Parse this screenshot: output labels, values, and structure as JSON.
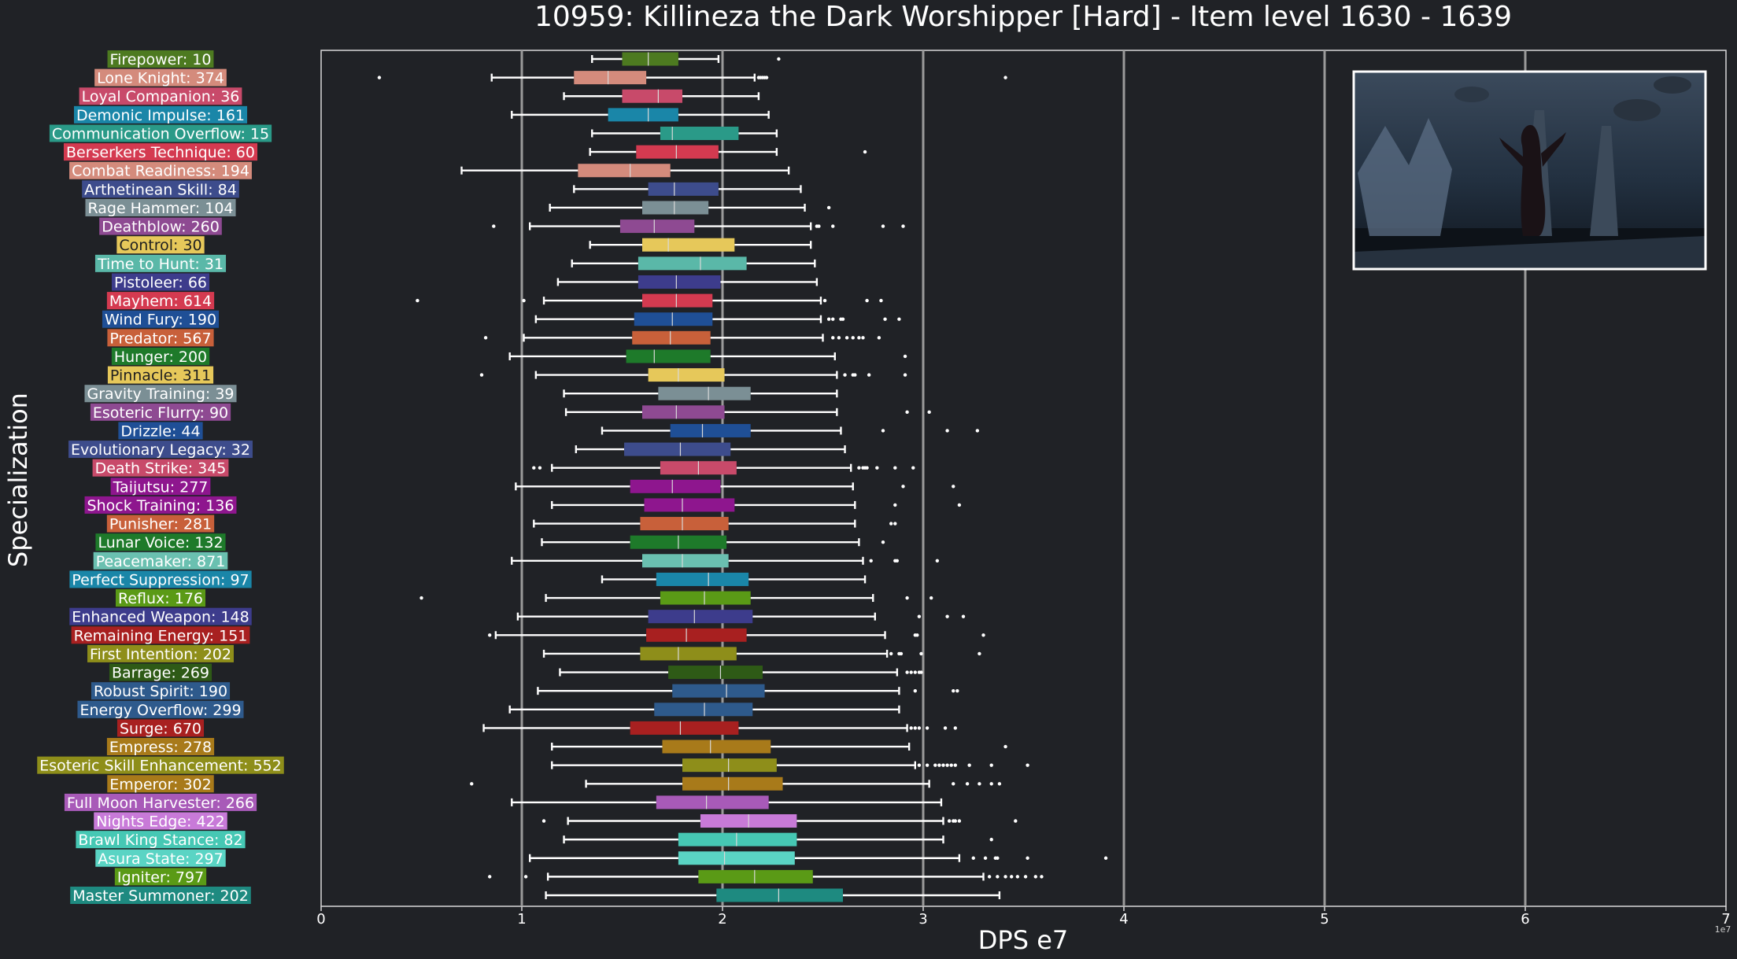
{
  "chart_data": {
    "type": "boxplot",
    "orientation": "horizontal",
    "title": "10959: Killineza the Dark Worshipper [Hard] - Item level 1630 - 1639",
    "xlabel": "DPS e7",
    "ylabel": "Specialization",
    "x_offset_text": "1e7",
    "xlim": [
      0,
      7
    ],
    "x_ticks": [
      0,
      1,
      2,
      3,
      4,
      5,
      6,
      7
    ],
    "grid_lines_x": [
      1,
      2,
      3,
      4,
      5,
      6
    ],
    "inset_image": "boss screenshot",
    "categories": [
      {
        "label": "Firepower: 10",
        "color": "#4d7a20",
        "stats": [
          1.35,
          1.5,
          1.63,
          1.78,
          1.98
        ],
        "outliers": [
          2.28
        ]
      },
      {
        "label": "Lone Knight: 374",
        "color": "#d48b7c",
        "stats": [
          0.85,
          1.26,
          1.43,
          1.62,
          2.16
        ],
        "outliers": [
          0.29,
          2.18,
          2.19,
          2.2,
          2.21,
          2.22,
          3.41
        ]
      },
      {
        "label": "Loyal Companion: 36",
        "color": "#c84a6a",
        "stats": [
          1.21,
          1.5,
          1.68,
          1.8,
          2.18
        ],
        "outliers": []
      },
      {
        "label": "Demonic Impulse: 161",
        "color": "#1a86a8",
        "stats": [
          0.95,
          1.43,
          1.63,
          1.78,
          2.23
        ],
        "outliers": []
      },
      {
        "label": "Communication Overflow: 15",
        "color": "#2a9a88",
        "stats": [
          1.35,
          1.69,
          1.75,
          2.08,
          2.27
        ],
        "outliers": []
      },
      {
        "label": "Berserkers Technique: 60",
        "color": "#d43a50",
        "stats": [
          1.34,
          1.57,
          1.77,
          1.98,
          2.27
        ],
        "outliers": [
          2.71
        ]
      },
      {
        "label": "Combat Readiness: 194",
        "color": "#d48b7c",
        "stats": [
          0.7,
          1.28,
          1.54,
          1.74,
          2.33
        ],
        "outliers": []
      },
      {
        "label": "Arthetinean Skill: 84",
        "color": "#3d4c8c",
        "stats": [
          1.26,
          1.63,
          1.76,
          1.98,
          2.39
        ],
        "outliers": []
      },
      {
        "label": "Rage Hammer: 104",
        "color": "#7b8f95",
        "stats": [
          1.14,
          1.6,
          1.76,
          1.93,
          2.41
        ],
        "outliers": [
          2.53
        ]
      },
      {
        "label": "Deathblow: 260",
        "color": "#8e4a92",
        "stats": [
          1.04,
          1.49,
          1.66,
          1.86,
          2.44
        ],
        "outliers": [
          0.86,
          2.47,
          2.48,
          2.55,
          2.8,
          2.9
        ]
      },
      {
        "label": "Control: 30",
        "color": "#e6c85a",
        "stats": [
          1.34,
          1.6,
          1.73,
          2.06,
          2.44
        ],
        "outliers": []
      },
      {
        "label": "Time to Hunt: 31",
        "color": "#5ab8a8",
        "stats": [
          1.25,
          1.58,
          1.89,
          2.12,
          2.46
        ],
        "outliers": []
      },
      {
        "label": "Pistoleer: 66",
        "color": "#3d3c8c",
        "stats": [
          1.18,
          1.58,
          1.77,
          1.99,
          2.47
        ],
        "outliers": []
      },
      {
        "label": "Mayhem: 614",
        "color": "#d43a50",
        "stats": [
          1.11,
          1.6,
          1.77,
          1.95,
          2.49
        ],
        "outliers": [
          0.48,
          1.01,
          2.51,
          2.72,
          2.79
        ]
      },
      {
        "label": "Wind Fury: 190",
        "color": "#1f4f96",
        "stats": [
          1.07,
          1.56,
          1.75,
          1.95,
          2.49
        ],
        "outliers": [
          2.53,
          2.55,
          2.59,
          2.6,
          2.81,
          2.88
        ]
      },
      {
        "label": "Predator: 567",
        "color": "#c8603a",
        "stats": [
          1.01,
          1.55,
          1.74,
          1.94,
          2.5
        ],
        "outliers": [
          0.82,
          2.55,
          2.58,
          2.62,
          2.65,
          2.68,
          2.7,
          2.78
        ]
      },
      {
        "label": "Hunger: 200",
        "color": "#1e7a2a",
        "stats": [
          0.94,
          1.52,
          1.66,
          1.94,
          2.56
        ],
        "outliers": [
          2.91
        ]
      },
      {
        "label": "Pinnacle: 311",
        "color": "#e6c85a",
        "stats": [
          1.07,
          1.63,
          1.78,
          2.01,
          2.57
        ],
        "outliers": [
          0.8,
          2.61,
          2.65,
          2.66,
          2.73,
          2.91
        ]
      },
      {
        "label": "Gravity Training: 39",
        "color": "#7b8f95",
        "stats": [
          1.21,
          1.68,
          1.93,
          2.14,
          2.57
        ],
        "outliers": []
      },
      {
        "label": "Esoteric Flurry: 90",
        "color": "#8e4a92",
        "stats": [
          1.22,
          1.6,
          1.77,
          2.01,
          2.57
        ],
        "outliers": [
          2.92,
          3.03
        ]
      },
      {
        "label": "Drizzle: 44",
        "color": "#1f4f96",
        "stats": [
          1.4,
          1.74,
          1.9,
          2.14,
          2.59
        ],
        "outliers": [
          2.8,
          3.12,
          3.27
        ]
      },
      {
        "label": "Evolutionary Legacy: 32",
        "color": "#3d4c8c",
        "stats": [
          1.27,
          1.51,
          1.79,
          2.04,
          2.61
        ],
        "outliers": []
      },
      {
        "label": "Death Strike: 345",
        "color": "#c84a6a",
        "stats": [
          1.15,
          1.69,
          1.88,
          2.07,
          2.64
        ],
        "outliers": [
          1.06,
          1.09,
          2.68,
          2.7,
          2.71,
          2.72,
          2.77,
          2.86,
          2.95
        ]
      },
      {
        "label": "Taijutsu: 277",
        "color": "#8e168e",
        "stats": [
          0.97,
          1.54,
          1.75,
          1.99,
          2.65
        ],
        "outliers": [
          2.9,
          3.15
        ]
      },
      {
        "label": "Shock Training: 136",
        "color": "#8e168e",
        "stats": [
          1.15,
          1.61,
          1.8,
          2.06,
          2.66
        ],
        "outliers": [
          2.86,
          3.18
        ]
      },
      {
        "label": "Punisher: 281",
        "color": "#c8603a",
        "stats": [
          1.06,
          1.59,
          1.8,
          2.03,
          2.66
        ],
        "outliers": [
          2.84,
          2.86
        ]
      },
      {
        "label": "Lunar Voice: 132",
        "color": "#1e7a2a",
        "stats": [
          1.1,
          1.54,
          1.78,
          2.02,
          2.68
        ],
        "outliers": [
          2.8
        ]
      },
      {
        "label": "Peacemaker: 871",
        "color": "#6ac0b0",
        "stats": [
          0.95,
          1.6,
          1.8,
          2.03,
          2.7
        ],
        "outliers": [
          2.74,
          2.86,
          2.87,
          3.07
        ]
      },
      {
        "label": "Perfect Suppression: 97",
        "color": "#1a86a8",
        "stats": [
          1.4,
          1.67,
          1.93,
          2.13,
          2.71
        ],
        "outliers": []
      },
      {
        "label": "Reflux: 176",
        "color": "#5a9a16",
        "stats": [
          1.12,
          1.69,
          1.91,
          2.14,
          2.75
        ],
        "outliers": [
          0.5,
          2.92,
          3.04
        ]
      },
      {
        "label": "Enhanced Weapon: 148",
        "color": "#3d3c8c",
        "stats": [
          0.98,
          1.63,
          1.86,
          2.15,
          2.76
        ],
        "outliers": [
          2.98,
          3.12,
          3.2
        ]
      },
      {
        "label": "Remaining Energy: 151",
        "color": "#a82020",
        "stats": [
          0.87,
          1.62,
          1.82,
          2.12,
          2.81
        ],
        "outliers": [
          0.84,
          2.96,
          2.97,
          3.3
        ]
      },
      {
        "label": "First Intention: 202",
        "color": "#8e8e1a",
        "stats": [
          1.11,
          1.59,
          1.78,
          2.07,
          2.82
        ],
        "outliers": [
          2.84,
          2.88,
          2.89,
          2.99,
          3.28
        ]
      },
      {
        "label": "Barrage: 269",
        "color": "#2e5a16",
        "stats": [
          1.19,
          1.73,
          1.99,
          2.2,
          2.87
        ],
        "outliers": [
          2.92,
          2.94,
          2.96,
          2.98,
          2.99
        ]
      },
      {
        "label": "Robust Spirit: 190",
        "color": "#2e5a8c",
        "stats": [
          1.08,
          1.75,
          2.02,
          2.21,
          2.88
        ],
        "outliers": [
          2.96,
          3.15,
          3.17
        ]
      },
      {
        "label": "Energy Overflow: 299",
        "color": "#2e5a8c",
        "stats": [
          0.94,
          1.66,
          1.91,
          2.15,
          2.88
        ],
        "outliers": []
      },
      {
        "label": "Surge: 670",
        "color": "#a82020",
        "stats": [
          0.81,
          1.54,
          1.79,
          2.08,
          2.92
        ],
        "outliers": [
          2.94,
          2.96,
          2.98,
          3.02,
          3.11,
          3.16
        ]
      },
      {
        "label": "Empress: 278",
        "color": "#a87a1a",
        "stats": [
          1.15,
          1.7,
          1.94,
          2.24,
          2.93
        ],
        "outliers": [
          3.41
        ]
      },
      {
        "label": "Esoteric Skill Enhancement: 552",
        "color": "#8e8e1a",
        "stats": [
          1.15,
          1.8,
          2.03,
          2.27,
          2.96
        ],
        "outliers": [
          2.98,
          3.02,
          3.06,
          3.08,
          3.1,
          3.12,
          3.14,
          3.16,
          3.23,
          3.34,
          3.52
        ]
      },
      {
        "label": "Emperor: 302",
        "color": "#a87a1a",
        "stats": [
          1.32,
          1.8,
          2.03,
          2.3,
          3.03
        ],
        "outliers": [
          0.75,
          3.15,
          3.22,
          3.28,
          3.34,
          3.38
        ]
      },
      {
        "label": "Full Moon Harvester: 266",
        "color": "#a85ab8",
        "stats": [
          0.95,
          1.67,
          1.92,
          2.23,
          3.09
        ],
        "outliers": []
      },
      {
        "label": "Nights Edge: 422",
        "color": "#c87ad8",
        "stats": [
          1.23,
          1.89,
          2.13,
          2.37,
          3.1
        ],
        "outliers": [
          1.11,
          3.13,
          3.15,
          3.16,
          3.18,
          3.46
        ]
      },
      {
        "label": "Brawl King Stance: 82",
        "color": "#46c8b4",
        "stats": [
          1.21,
          1.78,
          2.07,
          2.37,
          3.1
        ],
        "outliers": [
          3.34
        ]
      },
      {
        "label": "Asura State: 297",
        "color": "#5ad4c4",
        "stats": [
          1.04,
          1.78,
          2.01,
          2.36,
          3.18
        ],
        "outliers": [
          3.25,
          3.31,
          3.36,
          3.37,
          3.52,
          3.91
        ]
      },
      {
        "label": "Igniter: 797",
        "color": "#5a9a16",
        "stats": [
          1.13,
          1.88,
          2.16,
          2.45,
          3.3
        ],
        "outliers": [
          0.84,
          1.02,
          3.33,
          3.37,
          3.41,
          3.44,
          3.47,
          3.51,
          3.56,
          3.59
        ]
      },
      {
        "label": "Master Summoner: 202",
        "color": "#1e8a80",
        "stats": [
          1.12,
          1.97,
          2.28,
          2.6,
          3.38
        ],
        "outliers": []
      }
    ]
  }
}
